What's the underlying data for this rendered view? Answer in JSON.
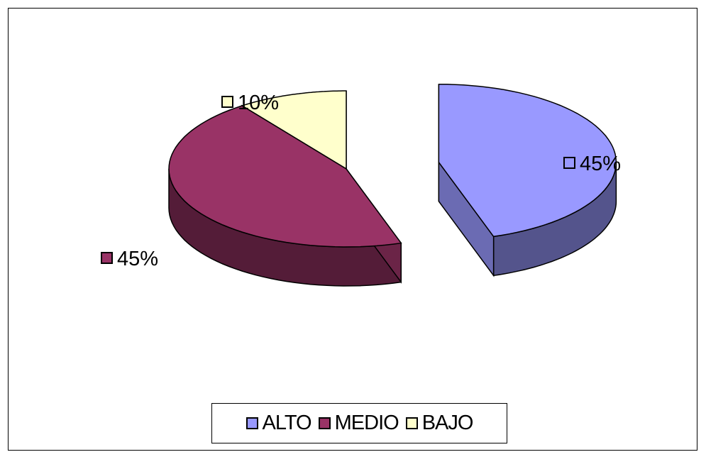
{
  "chart_data": {
    "type": "pie",
    "style": "3d-exploded",
    "categories": [
      "ALTO",
      "MEDIO",
      "BAJO"
    ],
    "values": [
      45,
      45,
      10
    ],
    "data_labels": [
      "45%",
      "45%",
      "10%"
    ],
    "colors": [
      "#9999ff",
      "#993366",
      "#ffffcc"
    ],
    "legend_position": "bottom"
  }
}
